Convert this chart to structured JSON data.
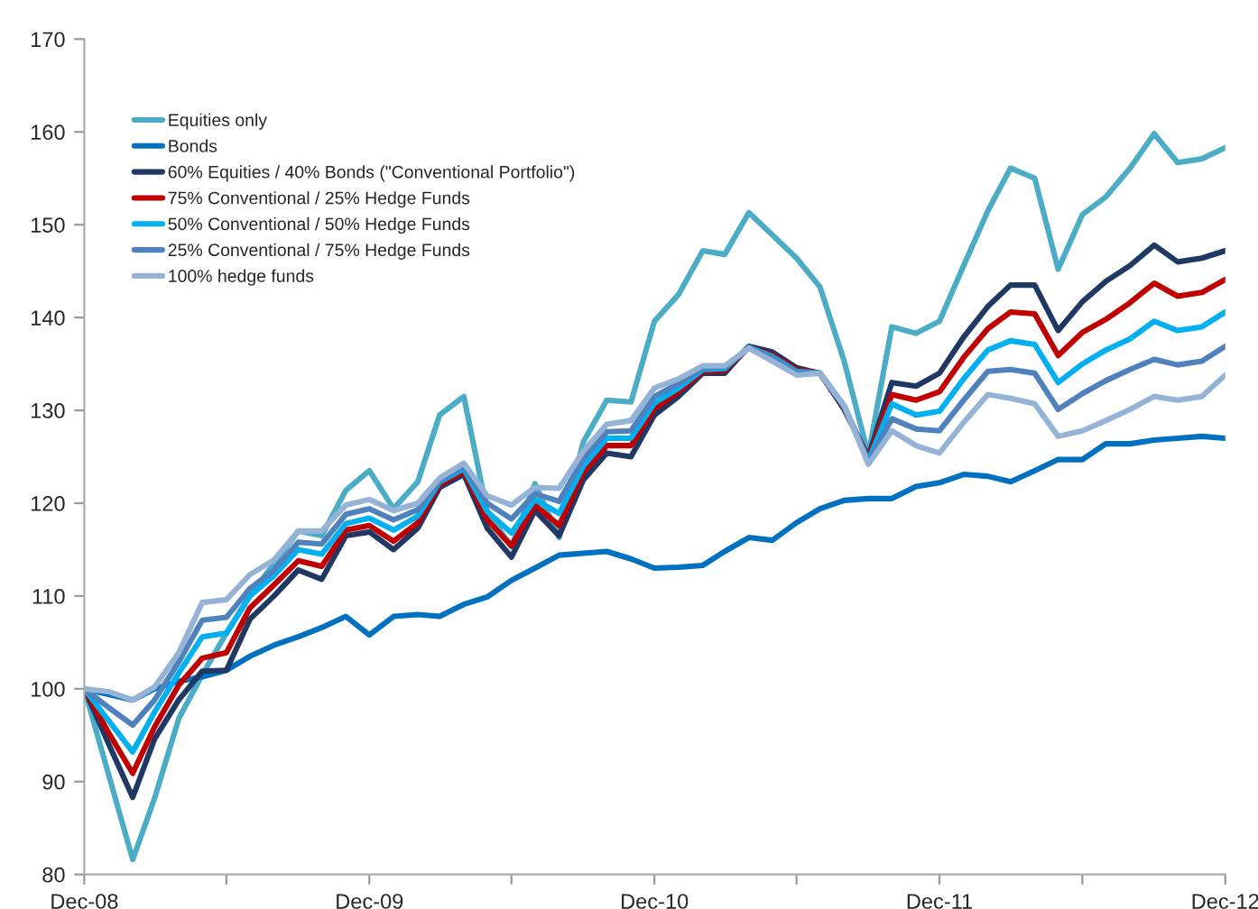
{
  "chart_data": {
    "type": "line",
    "x": [
      "2008-12",
      "2009-01",
      "2009-02",
      "2009-03",
      "2009-04",
      "2009-05",
      "2009-06",
      "2009-07",
      "2009-08",
      "2009-09",
      "2009-10",
      "2009-11",
      "2009-12",
      "2010-01",
      "2010-02",
      "2010-03",
      "2010-04",
      "2010-05",
      "2010-06",
      "2010-07",
      "2010-08",
      "2010-09",
      "2010-10",
      "2010-11",
      "2010-12",
      "2011-01",
      "2011-02",
      "2011-03",
      "2011-04",
      "2011-05",
      "2011-06",
      "2011-07",
      "2011-08",
      "2011-09",
      "2011-10",
      "2011-11",
      "2011-12",
      "2012-01",
      "2012-02",
      "2012-03",
      "2012-04",
      "2012-05",
      "2012-06",
      "2012-07",
      "2012-08",
      "2012-09",
      "2012-10",
      "2012-11",
      "2012-12"
    ],
    "series": [
      {
        "name": "Equities only",
        "color": "#4bacc6",
        "values": [
          100,
          90.8,
          81.6,
          88.2,
          96.8,
          101.5,
          106,
          110,
          113.5,
          117,
          116.5,
          121.4,
          123.5,
          119.4,
          122.3,
          129.5,
          131.5,
          119.0,
          115.3,
          122.1,
          116.3,
          126.6,
          131.1,
          130.9,
          139.6,
          142.5,
          147.2,
          146.8,
          151.3,
          148.9,
          146.4,
          143.3,
          135.3,
          125.2,
          139.0,
          138.3,
          139.6,
          145.6,
          151.5,
          156.1,
          155.0,
          145.2,
          151.1,
          153.0,
          156.1,
          159.8,
          156.7,
          157.1,
          158.3
        ]
      },
      {
        "name": "Bonds",
        "color": "#0070c0",
        "values": [
          100,
          99.4,
          98.8,
          100.0,
          100.8,
          101.3,
          102.0,
          103.5,
          104.7,
          105.6,
          106.6,
          107.8,
          105.8,
          107.8,
          108.0,
          107.8,
          109.1,
          109.9,
          111.7,
          113.0,
          114.4,
          114.6,
          114.8,
          114.0,
          113.0,
          113.1,
          113.3,
          114.8,
          116.3,
          116.0,
          117.9,
          119.4,
          120.3,
          120.5,
          120.5,
          121.8,
          122.2,
          123.1,
          122.9,
          122.3,
          123.5,
          124.7,
          124.7,
          126.4,
          126.4,
          126.8,
          127.0,
          127.2,
          127.0
        ]
      },
      {
        "name": "60% Equities / 40% Bonds (\"Conventional Portfolio\")",
        "color": "#1f3864",
        "values": [
          100,
          94.1,
          88.3,
          94.6,
          98.8,
          101.9,
          102.0,
          107.5,
          110.0,
          112.8,
          111.8,
          116.5,
          116.9,
          115.0,
          117.3,
          121.7,
          123.1,
          117.3,
          114.2,
          119.2,
          116.5,
          122.5,
          125.4,
          125.0,
          129.5,
          131.5,
          134.0,
          134.0,
          136.9,
          136.3,
          134.6,
          134.0,
          130.1,
          125.0,
          133.0,
          132.6,
          134.0,
          137.9,
          141.2,
          143.5,
          143.5,
          138.6,
          141.7,
          143.9,
          145.6,
          147.8,
          146.0,
          146.4,
          147.2
        ]
      },
      {
        "name": "75% Conventional / 25% Hedge Funds",
        "color": "#c00000",
        "values": [
          100,
          95.3,
          90.9,
          95.9,
          100.4,
          103.3,
          103.9,
          108.7,
          111.2,
          113.8,
          113.2,
          117.1,
          117.6,
          115.9,
          117.9,
          122.0,
          123.4,
          118.2,
          115.4,
          119.8,
          117.6,
          123.3,
          126.2,
          126.2,
          130.2,
          132.0,
          134.2,
          134.3,
          136.8,
          136.0,
          134.4,
          134.0,
          130.3,
          124.8,
          131.7,
          131.1,
          132.0,
          135.7,
          138.8,
          140.6,
          140.4,
          135.9,
          138.4,
          139.8,
          141.6,
          143.7,
          142.3,
          142.7,
          144.1
        ]
      },
      {
        "name": "50% Conventional / 50% Hedge Funds",
        "color": "#00b0f0",
        "values": [
          100,
          96.6,
          93.2,
          97.5,
          101.7,
          105.6,
          106.0,
          110.0,
          112.2,
          115.0,
          114.5,
          117.8,
          118.4,
          117.1,
          118.6,
          122.3,
          123.7,
          119.1,
          116.8,
          120.4,
          118.9,
          124.0,
          127.0,
          127.0,
          130.8,
          132.4,
          134.4,
          134.5,
          136.8,
          135.8,
          134.2,
          134.0,
          130.4,
          124.6,
          130.7,
          129.5,
          129.9,
          133.4,
          136.5,
          137.5,
          137.1,
          133.0,
          135.0,
          136.5,
          137.7,
          139.6,
          138.6,
          139.0,
          140.6
        ]
      },
      {
        "name": "25% Conventional / 75% Hedge Funds",
        "color": "#4f81bd",
        "values": [
          100,
          98.0,
          96.1,
          98.8,
          102.9,
          107.4,
          107.7,
          110.8,
          112.8,
          115.8,
          115.6,
          118.8,
          119.4,
          118.2,
          119.3,
          122.5,
          124.0,
          120.0,
          118.3,
          121.0,
          120.2,
          124.8,
          127.7,
          127.8,
          131.5,
          132.9,
          134.6,
          134.7,
          136.7,
          135.6,
          134.0,
          134.0,
          130.5,
          124.4,
          129.1,
          128.0,
          127.8,
          131.1,
          134.2,
          134.4,
          134.0,
          130.1,
          131.8,
          133.2,
          134.4,
          135.5,
          134.9,
          135.3,
          136.9
        ]
      },
      {
        "name": "100% hedge funds",
        "color": "#95b3d7",
        "values": [
          100,
          99.7,
          98.8,
          100.2,
          103.9,
          109.3,
          109.6,
          112.3,
          113.9,
          117.0,
          117.0,
          119.8,
          120.4,
          119.2,
          120.0,
          122.7,
          124.3,
          120.8,
          119.8,
          121.7,
          121.6,
          125.6,
          128.5,
          128.9,
          132.4,
          133.4,
          134.8,
          134.8,
          136.7,
          135.3,
          133.8,
          134.0,
          130.5,
          124.2,
          127.8,
          126.2,
          125.4,
          128.7,
          131.7,
          131.3,
          130.7,
          127.2,
          127.8,
          128.9,
          130.1,
          131.5,
          131.1,
          131.5,
          133.8
        ]
      }
    ],
    "xlim": [
      "2008-12",
      "2012-12"
    ],
    "xticks": [
      {
        "value": "2008-12",
        "label": "Dec-08"
      },
      {
        "value": "2009-06",
        "label": null
      },
      {
        "value": "2009-12",
        "label": "Dec-09"
      },
      {
        "value": "2010-06",
        "label": null
      },
      {
        "value": "2010-12",
        "label": "Dec-10"
      },
      {
        "value": "2011-06",
        "label": null
      },
      {
        "value": "2011-12",
        "label": "Dec-11"
      },
      {
        "value": "2012-06",
        "label": null
      },
      {
        "value": "2012-12",
        "label": "Dec-12"
      }
    ],
    "ylim": [
      80,
      170
    ],
    "yticks": [
      80,
      90,
      100,
      110,
      120,
      130,
      140,
      150,
      160,
      170
    ],
    "legend": "top left"
  }
}
